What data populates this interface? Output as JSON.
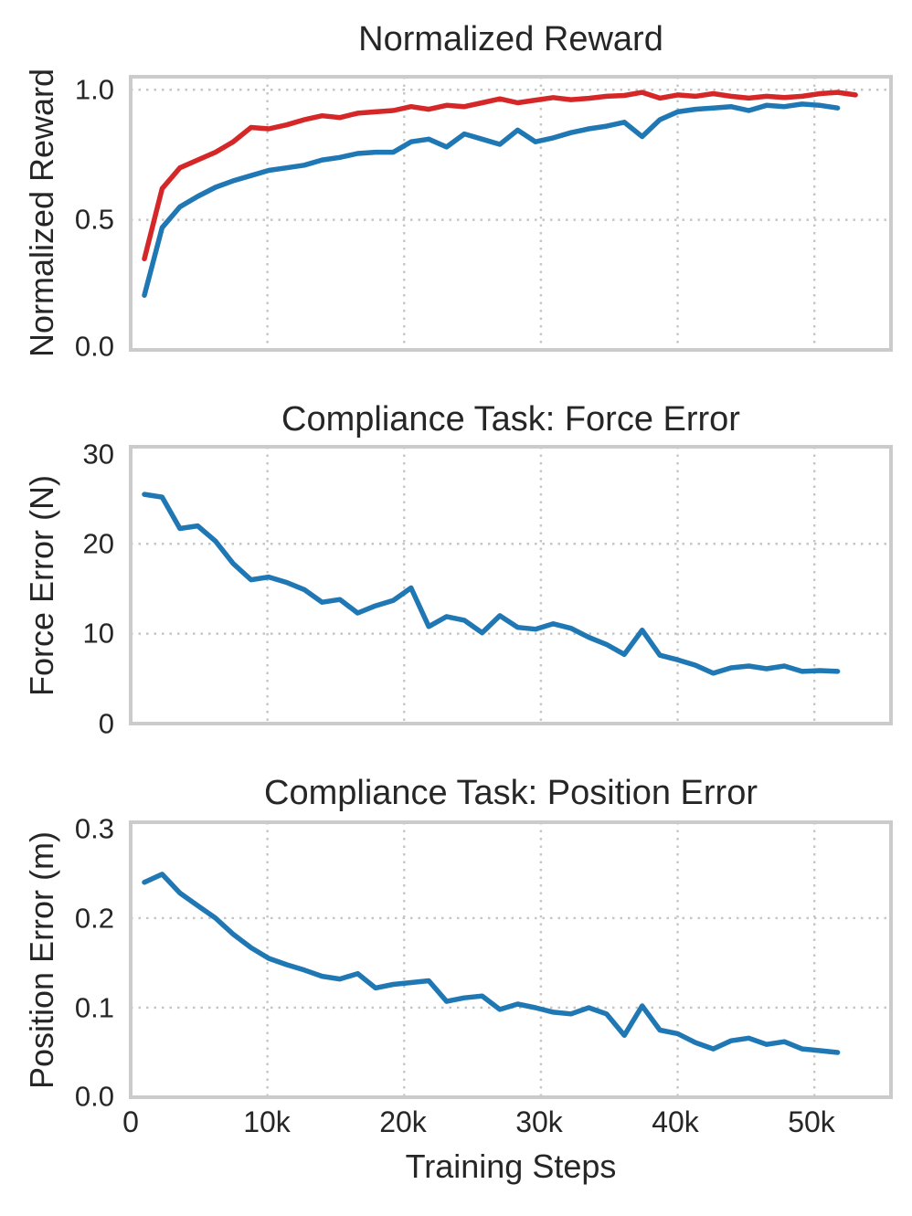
{
  "colors": {
    "red": "#d62728",
    "blue": "#1f77b4"
  },
  "x_axis": {
    "label": "Training Steps",
    "min": 0,
    "max": 55600,
    "ticks": [
      0,
      10000,
      20000,
      30000,
      40000,
      50000
    ],
    "tick_labels": [
      "0",
      "10k",
      "20k",
      "30k",
      "40k",
      "50k"
    ]
  },
  "chart_data": [
    {
      "type": "line",
      "title": "Normalized Reward",
      "ylabel": "Normalized Reward",
      "ylim": [
        0,
        1.05
      ],
      "yticks": [
        0.0,
        0.5,
        1.0
      ],
      "ytick_labels": [
        "0.0",
        "0.5",
        "1.0"
      ],
      "grid_y": [
        0.5,
        1.0
      ],
      "grid": true,
      "legend": "none",
      "series": [
        {
          "name": "normalized-reward-red-line",
          "color_key": "red",
          "x": [
            1000,
            2300,
            3600,
            4900,
            6200,
            7500,
            8800,
            10100,
            11400,
            12700,
            14000,
            15300,
            16600,
            17900,
            19200,
            20500,
            21800,
            23100,
            24400,
            25700,
            27000,
            28300,
            29600,
            30900,
            32200,
            33500,
            34800,
            36100,
            37400,
            38700,
            40000,
            41300,
            42600,
            43900,
            45200,
            46500,
            47800,
            49100,
            50400,
            51700,
            53000
          ],
          "y": [
            0.35,
            0.62,
            0.7,
            0.73,
            0.76,
            0.8,
            0.855,
            0.85,
            0.865,
            0.885,
            0.9,
            0.893,
            0.91,
            0.915,
            0.92,
            0.935,
            0.925,
            0.94,
            0.935,
            0.95,
            0.965,
            0.95,
            0.96,
            0.97,
            0.962,
            0.967,
            0.975,
            0.978,
            0.99,
            0.968,
            0.98,
            0.975,
            0.985,
            0.975,
            0.968,
            0.975,
            0.97,
            0.975,
            0.985,
            0.99,
            0.98
          ]
        },
        {
          "name": "normalized-reward-blue-line",
          "color_key": "blue",
          "x": [
            1000,
            2300,
            3600,
            4900,
            6200,
            7500,
            8800,
            10100,
            11400,
            12700,
            14000,
            15300,
            16600,
            17900,
            19200,
            20500,
            21800,
            23100,
            24400,
            25700,
            27000,
            28300,
            29600,
            30900,
            32200,
            33500,
            34800,
            36100,
            37400,
            38700,
            40000,
            41300,
            42600,
            43900,
            45200,
            46500,
            47800,
            49100,
            50400,
            51700
          ],
          "y": [
            0.21,
            0.47,
            0.55,
            0.59,
            0.625,
            0.65,
            0.67,
            0.69,
            0.7,
            0.71,
            0.73,
            0.74,
            0.755,
            0.76,
            0.76,
            0.8,
            0.81,
            0.78,
            0.83,
            0.81,
            0.79,
            0.845,
            0.8,
            0.815,
            0.835,
            0.85,
            0.86,
            0.875,
            0.82,
            0.885,
            0.915,
            0.925,
            0.93,
            0.935,
            0.92,
            0.94,
            0.935,
            0.945,
            0.94,
            0.93
          ]
        }
      ]
    },
    {
      "type": "line",
      "title": "Compliance Task: Force Error",
      "ylabel": "Force Error (N)",
      "ylim": [
        0,
        30.8
      ],
      "yticks": [
        0,
        10,
        20,
        30
      ],
      "ytick_labels": [
        "0",
        "10",
        "20",
        "30"
      ],
      "grid_y": [
        10,
        20
      ],
      "grid": true,
      "legend": "none",
      "series": [
        {
          "name": "force-error-line",
          "color_key": "blue",
          "x": [
            1000,
            2300,
            3600,
            4900,
            6200,
            7500,
            8800,
            10100,
            11400,
            12700,
            14000,
            15300,
            16600,
            17900,
            19200,
            20500,
            21800,
            23100,
            24400,
            25700,
            27000,
            28300,
            29600,
            30900,
            32200,
            33500,
            34800,
            36100,
            37400,
            38700,
            40000,
            41300,
            42600,
            43900,
            45200,
            46500,
            47800,
            49100,
            50400,
            51700
          ],
          "y": [
            25.5,
            25.2,
            21.7,
            22.0,
            20.3,
            17.8,
            16.0,
            16.3,
            15.7,
            14.9,
            13.5,
            13.8,
            12.3,
            13.1,
            13.7,
            15.1,
            10.8,
            11.9,
            11.5,
            10.1,
            12.0,
            10.7,
            10.5,
            11.1,
            10.6,
            9.6,
            8.8,
            7.7,
            10.4,
            7.6,
            7.1,
            6.5,
            5.6,
            6.2,
            6.4,
            6.1,
            6.4,
            5.8,
            5.9,
            5.8
          ]
        }
      ]
    },
    {
      "type": "line",
      "title": "Compliance Task: Position Error",
      "ylabel": "Position Error (m)",
      "ylim": [
        0,
        0.307
      ],
      "yticks": [
        0.0,
        0.1,
        0.2,
        0.3
      ],
      "ytick_labels": [
        "0.0",
        "0.1",
        "0.2",
        "0.3"
      ],
      "grid_y": [
        0.1,
        0.2
      ],
      "grid": true,
      "legend": "none",
      "series": [
        {
          "name": "position-error-line",
          "color_key": "blue",
          "x": [
            1000,
            2300,
            3600,
            4900,
            6200,
            7500,
            8800,
            10100,
            11400,
            12700,
            14000,
            15300,
            16600,
            17900,
            19200,
            20500,
            21800,
            23100,
            24400,
            25700,
            27000,
            28300,
            29600,
            30900,
            32200,
            33500,
            34800,
            36100,
            37400,
            38700,
            40000,
            41300,
            42600,
            43900,
            45200,
            46500,
            47800,
            49100,
            50400,
            51700
          ],
          "y": [
            0.24,
            0.249,
            0.228,
            0.214,
            0.2,
            0.182,
            0.167,
            0.155,
            0.148,
            0.142,
            0.135,
            0.132,
            0.138,
            0.122,
            0.126,
            0.128,
            0.13,
            0.107,
            0.111,
            0.113,
            0.098,
            0.104,
            0.1,
            0.095,
            0.093,
            0.1,
            0.093,
            0.069,
            0.102,
            0.075,
            0.071,
            0.061,
            0.054,
            0.063,
            0.066,
            0.059,
            0.062,
            0.054,
            0.052,
            0.05
          ]
        }
      ]
    }
  ]
}
